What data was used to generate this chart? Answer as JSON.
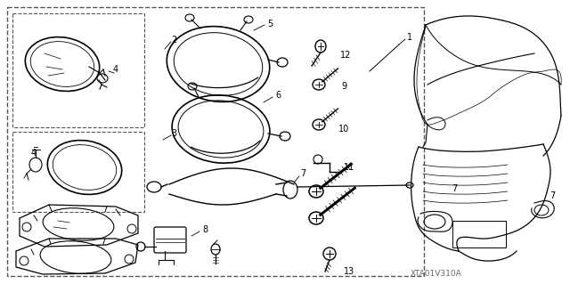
{
  "bg_color": "#ffffff",
  "watermark": "XTA01V310A",
  "fig_w": 6.4,
  "fig_h": 3.19,
  "dpi": 100,
  "xlim": [
    0,
    640
  ],
  "ylim": [
    0,
    319
  ]
}
